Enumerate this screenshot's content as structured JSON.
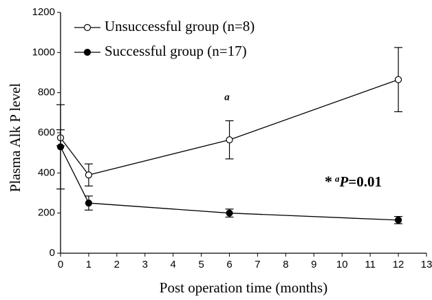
{
  "chart_data": {
    "type": "line",
    "x_label": "Post operation time (months)",
    "y_label": "Plasma Alk P level",
    "xlim": [
      0,
      13
    ],
    "xticks": [
      0,
      1,
      2,
      3,
      4,
      5,
      6,
      7,
      8,
      9,
      10,
      11,
      12,
      13
    ],
    "ylim": [
      0,
      1200
    ],
    "yticks": [
      0,
      200,
      400,
      600,
      800,
      1000,
      1200
    ],
    "grid": false,
    "legend": "upper left",
    "series": [
      {
        "name": "Unsuccessful group (n=8)",
        "color": "#000000",
        "marker": "open",
        "x": [
          0,
          1,
          6,
          12
        ],
        "values": [
          575,
          390,
          565,
          865
        ],
        "errors": [
          40,
          55,
          95,
          160
        ]
      },
      {
        "name": "Successful group (n=17)",
        "color": "#000000",
        "marker": "filled",
        "x": [
          0,
          1,
          6,
          12
        ],
        "values": [
          530,
          250,
          200,
          165
        ],
        "errors": [
          210,
          35,
          20,
          18
        ]
      }
    ],
    "annotations": [
      "a",
      "*",
      "a",
      "P",
      "=0.01"
    ]
  }
}
